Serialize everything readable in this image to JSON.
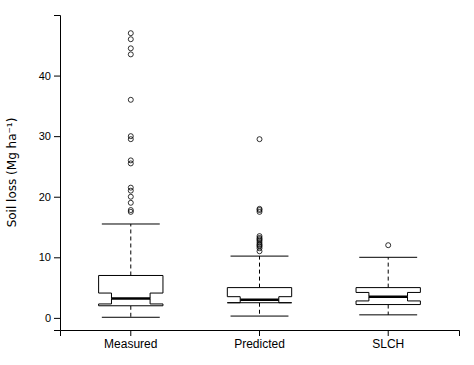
{
  "chart_data": {
    "type": "box",
    "ylabel": "Soil loss (Mg ha⁻¹)",
    "categories": [
      "Measured",
      "Predicted",
      "SLCH"
    ],
    "boxes": [
      {
        "q1": 2.0,
        "q3": 7.0,
        "median": 3.2,
        "notch_lo": 2.3,
        "notch_hi": 4.1,
        "whisker_low": 0.1,
        "whisker_high": 15.5,
        "outliers": [
          17.5,
          17.8,
          19.0,
          20.0,
          21.0,
          21.5,
          25.5,
          26.0,
          29.5,
          30.0,
          36.0,
          43.5,
          44.5,
          46.0,
          47.0
        ]
      },
      {
        "q1": 2.5,
        "q3": 5.0,
        "median": 3.0,
        "notch_lo": 2.5,
        "notch_hi": 3.5,
        "whisker_low": 0.3,
        "whisker_high": 10.2,
        "outliers": [
          11.0,
          11.5,
          11.8,
          12.0,
          12.2,
          12.5,
          12.8,
          13.0,
          13.2,
          13.5,
          17.5,
          17.8,
          18.0,
          29.5
        ]
      },
      {
        "q1": 2.2,
        "q3": 5.0,
        "median": 3.5,
        "notch_lo": 2.8,
        "notch_hi": 4.2,
        "whisker_low": 0.5,
        "whisker_high": 10.0,
        "outliers": [
          12.0
        ]
      }
    ],
    "color": "#000000",
    "ylim": [
      -2,
      50
    ],
    "yticks": [
      0,
      10,
      20,
      30,
      40
    ]
  }
}
